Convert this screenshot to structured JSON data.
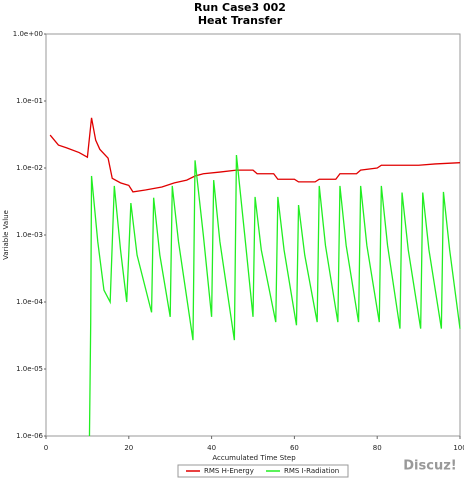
{
  "chart_data": {
    "type": "line",
    "title": "Run Case3 002",
    "subtitle": "Heat Transfer",
    "x_label": "Accumulated Time Step",
    "y_label": "Variable Value",
    "xlim": [
      0,
      100
    ],
    "xticks": [
      0,
      20,
      40,
      60,
      80,
      100
    ],
    "ylim": [
      1e-06,
      1
    ],
    "log_y": true,
    "yticks": [
      {
        "value": 1,
        "label": "1.0e+00"
      },
      {
        "value": 0.1,
        "label": "1.0e-01"
      },
      {
        "value": 0.01,
        "label": "1.0e-02"
      },
      {
        "value": 0.001,
        "label": "1.0e-03"
      },
      {
        "value": 0.0001,
        "label": "1.0e-04"
      },
      {
        "value": 1e-05,
        "label": "1.0e-05"
      },
      {
        "value": 1e-06,
        "label": "1.0e-06"
      }
    ],
    "legend": "bottom",
    "series": [
      {
        "name": "RMS H-Energy",
        "color": "#e00000",
        "x": [
          1,
          3,
          5,
          8,
          10,
          11,
          12,
          13,
          15,
          16,
          18,
          20,
          21,
          24,
          28,
          31,
          34,
          36,
          38,
          42,
          46,
          50,
          51,
          55,
          56,
          60,
          61,
          65,
          66,
          70,
          71,
          75,
          76,
          80,
          81,
          90,
          94,
          100
        ],
        "values": [
          0.031,
          0.022,
          0.02,
          0.017,
          0.0145,
          0.056,
          0.026,
          0.019,
          0.014,
          0.007,
          0.006,
          0.0055,
          0.0044,
          0.0047,
          0.0052,
          0.006,
          0.0066,
          0.0076,
          0.0082,
          0.0087,
          0.0093,
          0.0093,
          0.0082,
          0.0082,
          0.0068,
          0.0068,
          0.0062,
          0.0062,
          0.0068,
          0.0068,
          0.0082,
          0.0082,
          0.0093,
          0.01,
          0.011,
          0.011,
          0.0115,
          0.012
        ]
      },
      {
        "name": "RMS I-Radiation",
        "color": "#22ee22",
        "x": [
          10.5,
          10.8,
          11,
          12.5,
          14,
          15.5,
          16.5,
          18,
          19.5,
          20.5,
          22,
          25.5,
          26,
          27.5,
          30,
          30.5,
          32,
          35.5,
          36,
          38,
          40,
          40.5,
          42,
          45.5,
          46,
          48,
          50,
          50.5,
          52,
          55.5,
          56,
          57.5,
          60.5,
          61,
          62.5,
          65.5,
          66,
          67.5,
          70.5,
          71,
          72.5,
          75.5,
          76,
          77.5,
          80.5,
          81,
          82.5,
          85.5,
          86,
          87.5,
          90.5,
          91,
          92.5,
          95.5,
          96,
          97.5,
          100
        ],
        "values": [
          1e-06,
          5e-05,
          0.0076,
          0.0008,
          0.00015,
          0.0001,
          0.0054,
          0.0006,
          0.0001,
          0.003,
          0.0005,
          7e-05,
          0.0036,
          0.0005,
          6e-05,
          0.0054,
          0.0008,
          2.7e-05,
          0.013,
          0.001,
          6e-05,
          0.0066,
          0.0008,
          2.7e-05,
          0.0156,
          0.001,
          6e-05,
          0.0037,
          0.0006,
          5e-05,
          0.0037,
          0.0006,
          4.5e-05,
          0.0028,
          0.0005,
          5e-05,
          0.0054,
          0.0007,
          5e-05,
          0.0054,
          0.0007,
          5e-05,
          0.0054,
          0.0007,
          5e-05,
          0.0054,
          0.0007,
          4e-05,
          0.0043,
          0.0006,
          4e-05,
          0.0043,
          0.0006,
          4e-05,
          0.0044,
          0.0006,
          4e-05
        ]
      }
    ]
  },
  "watermark": "Discuz!"
}
